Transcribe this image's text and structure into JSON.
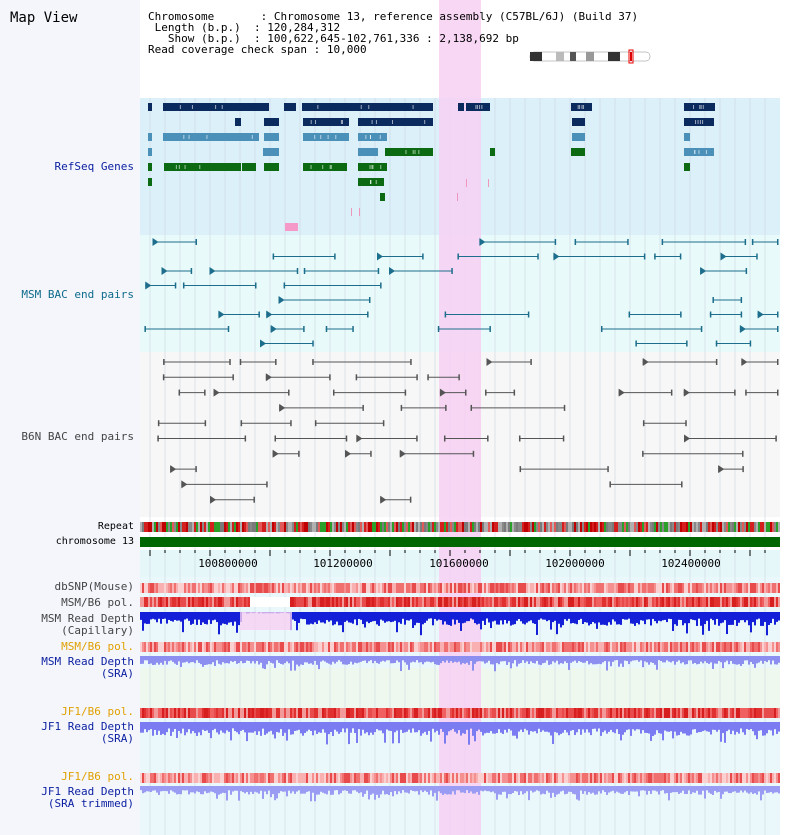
{
  "title": "Map View",
  "info": {
    "chromosome_label": "Chromosome",
    "chromosome_value": "Chromosome 13, reference assembly (C57BL/6J) (Build 37)",
    "length_label": "Length (b.p.)",
    "length_value": "120,284,312",
    "show_label": "Show (b.p.)",
    "show_value": "100,622,645-102,761,336 : 2,138,692 bp",
    "read_span_label": "Read coverage check span",
    "read_span_value": "10,000"
  },
  "tracks": {
    "refseq": "RefSeq Genes",
    "msm_bac": "MSM BAC end pairs",
    "b6n_bac": "B6N BAC end pairs",
    "repeat": "Repeat",
    "chromosome": "chromosome 13",
    "dbsnp": "dbSNP(Mouse)",
    "msm_b6_pol_1": "MSM/B6 pol.",
    "msm_depth_cap_1": "MSM Read Depth",
    "msm_depth_cap_2": "(Capillary)",
    "msm_b6_pol_2": "MSM/B6 pol.",
    "msm_depth_sra_1": "MSM Read Depth",
    "msm_depth_sra_2": "(SRA)",
    "jf1_b6_pol_1": "JF1/B6 pol.",
    "jf1_depth_sra_1": "JF1 Read Depth",
    "jf1_depth_sra_2": "(SRA)",
    "jf1_b6_pol_2": "JF1/B6 pol.",
    "jf1_depth_trim_1": "JF1 Read Depth",
    "jf1_depth_trim_2": "(SRA trimmed)"
  },
  "axis": {
    "ticks": [
      "100800000",
      "101200000",
      "101600000",
      "102000000",
      "102400000"
    ]
  },
  "colors": {
    "refseq_label": "#0b1ea0",
    "msm_label": "#0d6b8a",
    "b6n_label": "#444444",
    "pol_label": "#e0a000",
    "depth_label": "#0b1ea0",
    "highlight": "#f7d0f3",
    "chromosome_bar": "#006600"
  }
}
